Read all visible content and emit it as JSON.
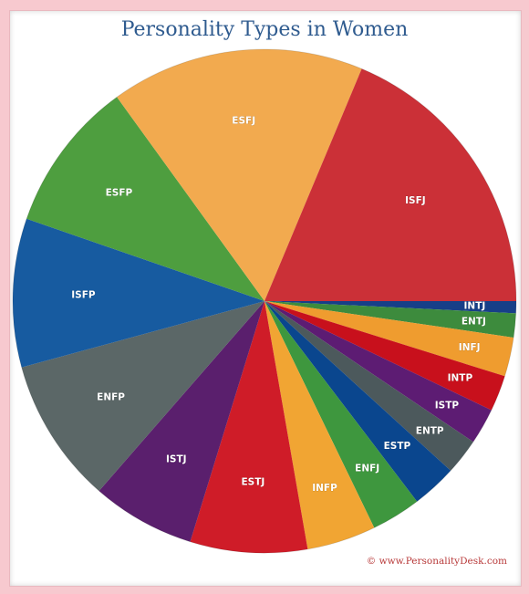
{
  "chart_data": {
    "type": "pie",
    "title": "Personality Types in Women",
    "start": "3 o'clock, clockwise",
    "slices": [
      {
        "label": "INTJ",
        "value": 0.8,
        "color": "#173f88"
      },
      {
        "label": "ENTJ",
        "value": 1.6,
        "color": "#3d8b3d"
      },
      {
        "label": "INFJ",
        "value": 2.6,
        "color": "#ef9c2f"
      },
      {
        "label": "INTP",
        "value": 2.4,
        "color": "#c8101c"
      },
      {
        "label": "ISTP",
        "value": 2.4,
        "color": "#5d1c73"
      },
      {
        "label": "ENTP",
        "value": 2.4,
        "color": "#4c595c"
      },
      {
        "label": "ESTP",
        "value": 3.0,
        "color": "#0a468e"
      },
      {
        "label": "ENFJ",
        "value": 3.3,
        "color": "#3e973e"
      },
      {
        "label": "INFP",
        "value": 4.6,
        "color": "#f1a533"
      },
      {
        "label": "ESTJ",
        "value": 7.8,
        "color": "#cf1c28"
      },
      {
        "label": "ISTJ",
        "value": 6.9,
        "color": "#5a1f6d"
      },
      {
        "label": "ENFP",
        "value": 9.7,
        "color": "#5b6767"
      },
      {
        "label": "ISFP",
        "value": 9.9,
        "color": "#175ba0"
      },
      {
        "label": "ESFP",
        "value": 10.1,
        "color": "#4e9e3f"
      },
      {
        "label": "ESFJ",
        "value": 16.9,
        "color": "#f2aa4f"
      },
      {
        "label": "ISFJ",
        "value": 19.4,
        "color": "#cb3037"
      }
    ]
  },
  "credit": "© www.PersonalityDesk.com"
}
